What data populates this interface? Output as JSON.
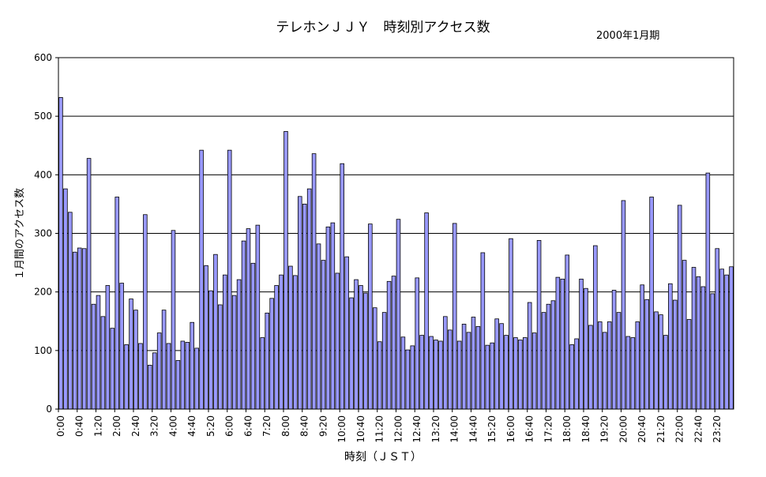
{
  "chart_data": {
    "type": "bar",
    "title": "テレホンＪＪＹ　時刻別アクセス数",
    "subtitle": "2000年1月期",
    "xlabel": "時刻（ＪＳＴ）",
    "ylabel": "１月間のアクセス数",
    "ylim": [
      0,
      600
    ],
    "yticks": [
      0,
      100,
      200,
      300,
      400,
      500,
      600
    ],
    "grid": true,
    "bar_color": "#9999ff",
    "categories": [
      "0:00",
      "0:10",
      "0:20",
      "0:30",
      "0:40",
      "0:50",
      "1:00",
      "1:10",
      "1:20",
      "1:30",
      "1:40",
      "1:50",
      "2:00",
      "2:10",
      "2:20",
      "2:30",
      "2:40",
      "2:50",
      "3:00",
      "3:10",
      "3:20",
      "3:30",
      "3:40",
      "3:50",
      "4:00",
      "4:10",
      "4:20",
      "4:30",
      "4:40",
      "4:50",
      "5:00",
      "5:10",
      "5:20",
      "5:30",
      "5:40",
      "5:50",
      "6:00",
      "6:10",
      "6:20",
      "6:30",
      "6:40",
      "6:50",
      "7:00",
      "7:10",
      "7:20",
      "7:30",
      "7:40",
      "7:50",
      "8:00",
      "8:10",
      "8:20",
      "8:30",
      "8:40",
      "8:50",
      "9:00",
      "9:10",
      "9:20",
      "9:30",
      "9:40",
      "9:50",
      "10:00",
      "10:10",
      "10:20",
      "10:30",
      "10:40",
      "10:50",
      "11:00",
      "11:10",
      "11:20",
      "11:30",
      "11:40",
      "11:50",
      "12:00",
      "12:10",
      "12:20",
      "12:30",
      "12:40",
      "12:50",
      "13:00",
      "13:10",
      "13:20",
      "13:30",
      "13:40",
      "13:50",
      "14:00",
      "14:10",
      "14:20",
      "14:30",
      "14:40",
      "14:50",
      "15:00",
      "15:10",
      "15:20",
      "15:30",
      "15:40",
      "15:50",
      "16:00",
      "16:10",
      "16:20",
      "16:30",
      "16:40",
      "16:50",
      "17:00",
      "17:10",
      "17:20",
      "17:30",
      "17:40",
      "17:50",
      "18:00",
      "18:10",
      "18:20",
      "18:30",
      "18:40",
      "18:50",
      "19:00",
      "19:10",
      "19:20",
      "19:30",
      "19:40",
      "19:50",
      "20:00",
      "20:10",
      "20:20",
      "20:30",
      "20:40",
      "20:50",
      "21:00",
      "21:10",
      "21:20",
      "21:30",
      "21:40",
      "21:50",
      "22:00",
      "22:10",
      "22:20",
      "22:30",
      "22:40",
      "22:50",
      "23:00",
      "23:10",
      "23:20",
      "23:30",
      "23:40",
      "23:50"
    ],
    "tick_labels": [
      "0:00",
      "0:40",
      "1:20",
      "2:00",
      "2:40",
      "3:20",
      "4:00",
      "4:40",
      "5:20",
      "6:00",
      "6:40",
      "7:20",
      "8:00",
      "8:40",
      "9:20",
      "10:00",
      "10:40",
      "11:20",
      "12:00",
      "12:40",
      "13:20",
      "14:00",
      "14:40",
      "15:20",
      "16:00",
      "16:40",
      "17:20",
      "18:00",
      "18:40",
      "19:20",
      "20:00",
      "20:40",
      "21:20",
      "22:00",
      "22:40",
      "23:20"
    ],
    "values": [
      532,
      376,
      336,
      268,
      275,
      274,
      428,
      179,
      194,
      158,
      211,
      138,
      362,
      215,
      110,
      188,
      169,
      112,
      332,
      75,
      96,
      130,
      169,
      112,
      305,
      83,
      116,
      114,
      148,
      104,
      442,
      245,
      202,
      264,
      178,
      229,
      442,
      194,
      221,
      287,
      308,
      249,
      314,
      122,
      164,
      189,
      211,
      229,
      474,
      244,
      228,
      363,
      350,
      376,
      436,
      282,
      254,
      311,
      318,
      232,
      419,
      260,
      190,
      221,
      211,
      198,
      316,
      173,
      115,
      165,
      218,
      227,
      324,
      123,
      101,
      108,
      224,
      126,
      335,
      124,
      118,
      116,
      158,
      135,
      317,
      116,
      145,
      131,
      157,
      141,
      267,
      109,
      113,
      154,
      146,
      126,
      291,
      122,
      118,
      122,
      182,
      130,
      288,
      165,
      179,
      185,
      225,
      222,
      263,
      110,
      120,
      222,
      206,
      143,
      279,
      149,
      131,
      149,
      203,
      165,
      356,
      124,
      122,
      149,
      212,
      187,
      362,
      166,
      161,
      126,
      214,
      186,
      348,
      254,
      153,
      242,
      226,
      209,
      403,
      197,
      274,
      239,
      229,
      243
    ]
  }
}
